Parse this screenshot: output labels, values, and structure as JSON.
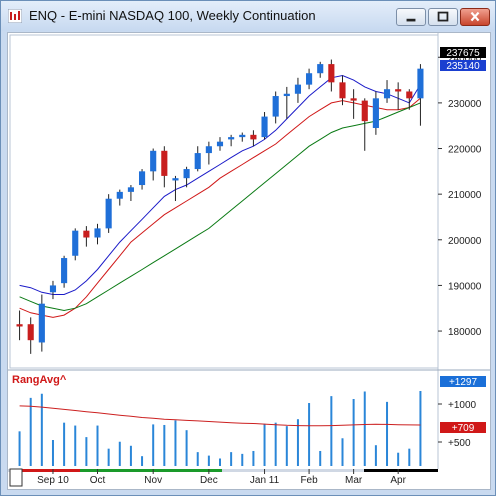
{
  "window": {
    "title": "ENQ - E-mini NASDAQ 100, Weekly Continuation",
    "buttons": [
      "minimize",
      "maximize",
      "close"
    ]
  },
  "colors": {
    "up_candle": "#1f6fd8",
    "down_candle": "#c81e1e",
    "ma_fast": "#1a1ac8",
    "ma_mid": "#d01818",
    "ma_slow": "#0a7a14",
    "volume_bar": "#2a86d8",
    "range_avg_line": "#cc2020",
    "last_price_tag": "#000000",
    "ma_tag": "#1a3fd0"
  },
  "price_axis": {
    "ticks": [
      "240000",
      "230000",
      "220000",
      "210000",
      "200000",
      "190000",
      "180000"
    ],
    "last_price_tag": "237675",
    "ma_tag": "235140"
  },
  "lower_panel": {
    "label": "RangAvg^",
    "ticks": [
      "+1000",
      "+500"
    ],
    "tag_blue": "+1297",
    "tag_red": "+709"
  },
  "time_axis": {
    "labels": [
      "Sep 10",
      "Oct",
      "Nov",
      "Dec",
      "Jan 11",
      "Feb",
      "Mar",
      "Apr"
    ]
  },
  "chart_data": {
    "type": "candlestick",
    "title": "ENQ - E-mini NASDAQ 100, Weekly Continuation",
    "y_range": [
      173000,
      244000
    ],
    "candles": [
      {
        "o": 181500,
        "h": 184500,
        "c": 181000,
        "l": 178000
      },
      {
        "o": 181500,
        "h": 183000,
        "c": 178000,
        "l": 175000
      },
      {
        "o": 177500,
        "h": 188000,
        "c": 186000,
        "l": 175500
      },
      {
        "o": 188500,
        "h": 191000,
        "c": 190000,
        "l": 187000
      },
      {
        "o": 190500,
        "h": 196500,
        "c": 196000,
        "l": 189500
      },
      {
        "o": 196500,
        "h": 202500,
        "c": 202000,
        "l": 195500
      },
      {
        "o": 202000,
        "h": 203000,
        "c": 200500,
        "l": 198500
      },
      {
        "o": 200500,
        "h": 203500,
        "c": 202500,
        "l": 199000
      },
      {
        "o": 202500,
        "h": 210000,
        "c": 209000,
        "l": 201500
      },
      {
        "o": 209000,
        "h": 211000,
        "c": 210500,
        "l": 207500
      },
      {
        "o": 210500,
        "h": 212000,
        "c": 211500,
        "l": 208500
      },
      {
        "o": 212000,
        "h": 215500,
        "c": 215000,
        "l": 211000
      },
      {
        "o": 215000,
        "h": 220000,
        "c": 219500,
        "l": 213000
      },
      {
        "o": 219500,
        "h": 220500,
        "c": 214000,
        "l": 211500
      },
      {
        "o": 213000,
        "h": 214000,
        "c": 213500,
        "l": 208500
      },
      {
        "o": 213500,
        "h": 216000,
        "c": 215500,
        "l": 211500
      },
      {
        "o": 215500,
        "h": 220500,
        "c": 219000,
        "l": 215000
      },
      {
        "o": 219000,
        "h": 221500,
        "c": 220500,
        "l": 216500
      },
      {
        "o": 220500,
        "h": 222500,
        "c": 221500,
        "l": 219500
      },
      {
        "o": 222000,
        "h": 223000,
        "c": 222500,
        "l": 220500
      },
      {
        "o": 222500,
        "h": 223500,
        "c": 223000,
        "l": 221500
      },
      {
        "o": 223000,
        "h": 224000,
        "c": 222000,
        "l": 220500
      },
      {
        "o": 222500,
        "h": 228000,
        "c": 227000,
        "l": 222000
      },
      {
        "o": 227000,
        "h": 232500,
        "c": 231500,
        "l": 225500
      },
      {
        "o": 231500,
        "h": 233500,
        "c": 232000,
        "l": 226500
      },
      {
        "o": 232000,
        "h": 235500,
        "c": 234000,
        "l": 230000
      },
      {
        "o": 234000,
        "h": 237500,
        "c": 236500,
        "l": 233000
      },
      {
        "o": 236500,
        "h": 239000,
        "c": 238500,
        "l": 235500
      },
      {
        "o": 238500,
        "h": 239500,
        "c": 234500,
        "l": 232500
      },
      {
        "o": 234500,
        "h": 236000,
        "c": 231000,
        "l": 229500
      },
      {
        "o": 231000,
        "h": 233000,
        "c": 230500,
        "l": 226500
      },
      {
        "o": 230500,
        "h": 231000,
        "c": 226000,
        "l": 219500
      },
      {
        "o": 224500,
        "h": 232500,
        "c": 231000,
        "l": 223000
      },
      {
        "o": 231000,
        "h": 235000,
        "c": 233000,
        "l": 230000
      },
      {
        "o": 233000,
        "h": 234500,
        "c": 232500,
        "l": 228500
      },
      {
        "o": 232500,
        "h": 233000,
        "c": 231000,
        "l": 228500
      },
      {
        "o": 231000,
        "h": 238500,
        "c": 237500,
        "l": 225000
      }
    ],
    "ma_fast": [
      190000,
      189500,
      188500,
      188000,
      188000,
      189000,
      191000,
      193500,
      196500,
      199500,
      202000,
      204500,
      207000,
      209500,
      211000,
      212000,
      213500,
      215000,
      216500,
      218000,
      219500,
      220500,
      222000,
      224000,
      226500,
      229000,
      231500,
      233500,
      235500,
      236000,
      235000,
      233500,
      232500,
      232000,
      231000,
      230000,
      234000
    ],
    "ma_mid": [
      185000,
      184000,
      183500,
      183000,
      183500,
      185000,
      187500,
      190500,
      193500,
      196500,
      199500,
      201500,
      203500,
      205500,
      207000,
      208500,
      210000,
      211500,
      213500,
      215000,
      216500,
      218000,
      219500,
      221000,
      223000,
      225000,
      227000,
      228500,
      230000,
      230500,
      230000,
      229500,
      229000,
      228500,
      228500,
      229000,
      231000
    ],
    "ma_slow": [
      187500,
      186500,
      185500,
      185000,
      184500,
      185000,
      186000,
      187500,
      189000,
      190500,
      192000,
      193500,
      195000,
      196500,
      198000,
      199500,
      201000,
      202500,
      204500,
      206500,
      208500,
      210500,
      212500,
      214500,
      216500,
      218500,
      220500,
      222000,
      223500,
      224500,
      225000,
      225500,
      226000,
      227000,
      228000,
      229000,
      230000
    ],
    "volume": [
      {
        "v": 600
      },
      {
        "v": 1180
      },
      {
        "v": 1250
      },
      {
        "v": 450
      },
      {
        "v": 750
      },
      {
        "v": 700
      },
      {
        "v": 500
      },
      {
        "v": 700
      },
      {
        "v": 300
      },
      {
        "v": 420
      },
      {
        "v": 350
      },
      {
        "v": 170
      },
      {
        "v": 720
      },
      {
        "v": 710
      },
      {
        "v": 790
      },
      {
        "v": 620
      },
      {
        "v": 240
      },
      {
        "v": 180
      },
      {
        "v": 130
      },
      {
        "v": 240
      },
      {
        "v": 210
      },
      {
        "v": 260
      },
      {
        "v": 730
      },
      {
        "v": 750
      },
      {
        "v": 690
      },
      {
        "v": 810
      },
      {
        "v": 1090
      },
      {
        "v": 260
      },
      {
        "v": 1210
      },
      {
        "v": 480
      },
      {
        "v": 1160
      },
      {
        "v": 1290
      },
      {
        "v": 360
      },
      {
        "v": 1110
      },
      {
        "v": 230
      },
      {
        "v": 300
      },
      {
        "v": 1297
      }
    ],
    "range_avg": [
      1040,
      1035,
      1020,
      1000,
      980,
      960,
      940,
      920,
      900,
      880,
      860,
      840,
      825,
      810,
      800,
      790,
      780,
      770,
      760,
      750,
      740,
      735,
      725,
      715,
      705,
      700,
      698,
      695,
      700,
      705,
      712,
      718,
      722,
      720,
      715,
      712,
      709
    ]
  }
}
